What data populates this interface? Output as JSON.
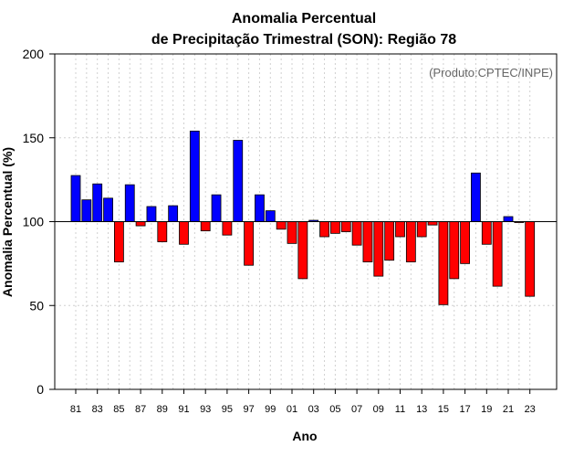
{
  "chart_data": {
    "type": "bar",
    "title_line1": "Anomalia Percentual",
    "title_line2": "de Precipitação Trimestral (SON): Região 78",
    "xlabel": "Ano",
    "ylabel": "Anomalia Percentual (%)",
    "credit": "(Produto:CPTEC/INPE)",
    "ylim": [
      0,
      200
    ],
    "yticks": [
      0,
      50,
      100,
      150,
      200
    ],
    "baseline": 100,
    "grid": true,
    "colors": {
      "above": "#0000ff",
      "below": "#ff0000",
      "outline": "#000000",
      "grid": "#d0d0d0"
    },
    "xtick_labels": [
      "81",
      "83",
      "85",
      "87",
      "89",
      "91",
      "93",
      "95",
      "97",
      "99",
      "01",
      "03",
      "05",
      "07",
      "09",
      "11",
      "13",
      "15",
      "17",
      "19",
      "21",
      "23"
    ],
    "categories": [
      "1981",
      "1982",
      "1983",
      "1984",
      "1985",
      "1986",
      "1987",
      "1988",
      "1989",
      "1990",
      "1991",
      "1992",
      "1993",
      "1994",
      "1995",
      "1996",
      "1997",
      "1998",
      "1999",
      "2000",
      "2001",
      "2002",
      "2003",
      "2004",
      "2005",
      "2006",
      "2007",
      "2008",
      "2009",
      "2010",
      "2011",
      "2012",
      "2013",
      "2014",
      "2015",
      "2016",
      "2017",
      "2018",
      "2019",
      "2020",
      "2021",
      "2022",
      "2023"
    ],
    "values": [
      127.5,
      113,
      122.5,
      114,
      76,
      122,
      97.5,
      109,
      88,
      109.5,
      86.5,
      154,
      94.5,
      116,
      92,
      148.5,
      74,
      116,
      106.5,
      95.5,
      87,
      66,
      100.8,
      91,
      93,
      94,
      86,
      76,
      67.5,
      77,
      91,
      76,
      91,
      98,
      50.5,
      66,
      75,
      129,
      86.5,
      61.5,
      103,
      99.5,
      55.5
    ]
  }
}
